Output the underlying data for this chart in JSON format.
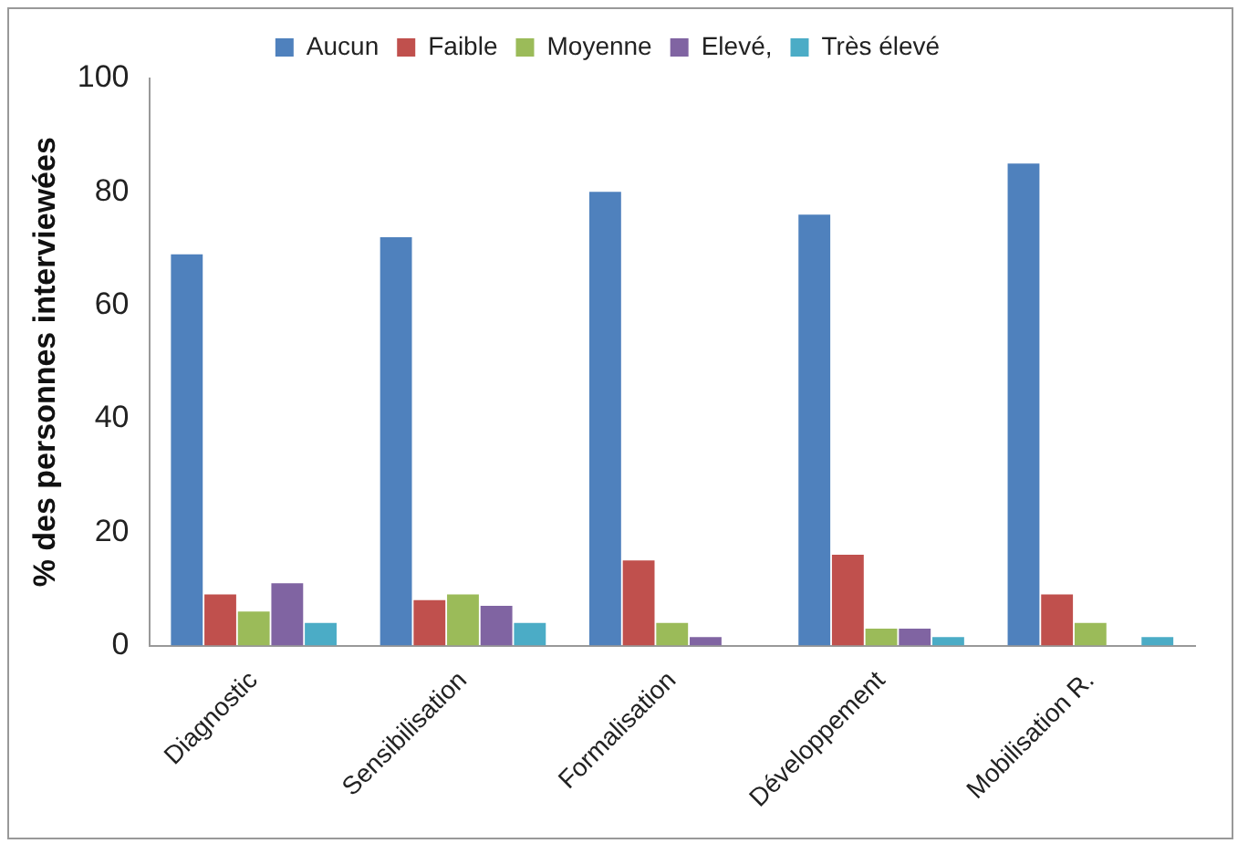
{
  "chart_data": {
    "type": "bar",
    "ylabel": "% des personnes interviewées",
    "categories": [
      "Diagnostic",
      "Sensibilisation",
      "Formalisation",
      "Développement",
      "Mobilisation R."
    ],
    "series": [
      {
        "name": "Aucun",
        "color": "#4f81bd",
        "values": [
          69,
          72,
          80,
          76,
          85
        ]
      },
      {
        "name": "Faible",
        "color": "#c0504d",
        "values": [
          9,
          8,
          15,
          16,
          9
        ]
      },
      {
        "name": "Moyenne",
        "color": "#9bbb59",
        "values": [
          6,
          9,
          4,
          3,
          4
        ]
      },
      {
        "name": "Elevé,",
        "color": "#8064a2",
        "values": [
          11,
          7,
          1.5,
          3,
          0
        ]
      },
      {
        "name": "Très élevé",
        "color": "#4bacc6",
        "values": [
          4,
          4,
          0,
          1.5,
          1.5
        ]
      }
    ],
    "ylim": [
      0,
      100
    ],
    "yticks": [
      0,
      20,
      40,
      60,
      80,
      100
    ],
    "grid": false,
    "legend": "top"
  }
}
